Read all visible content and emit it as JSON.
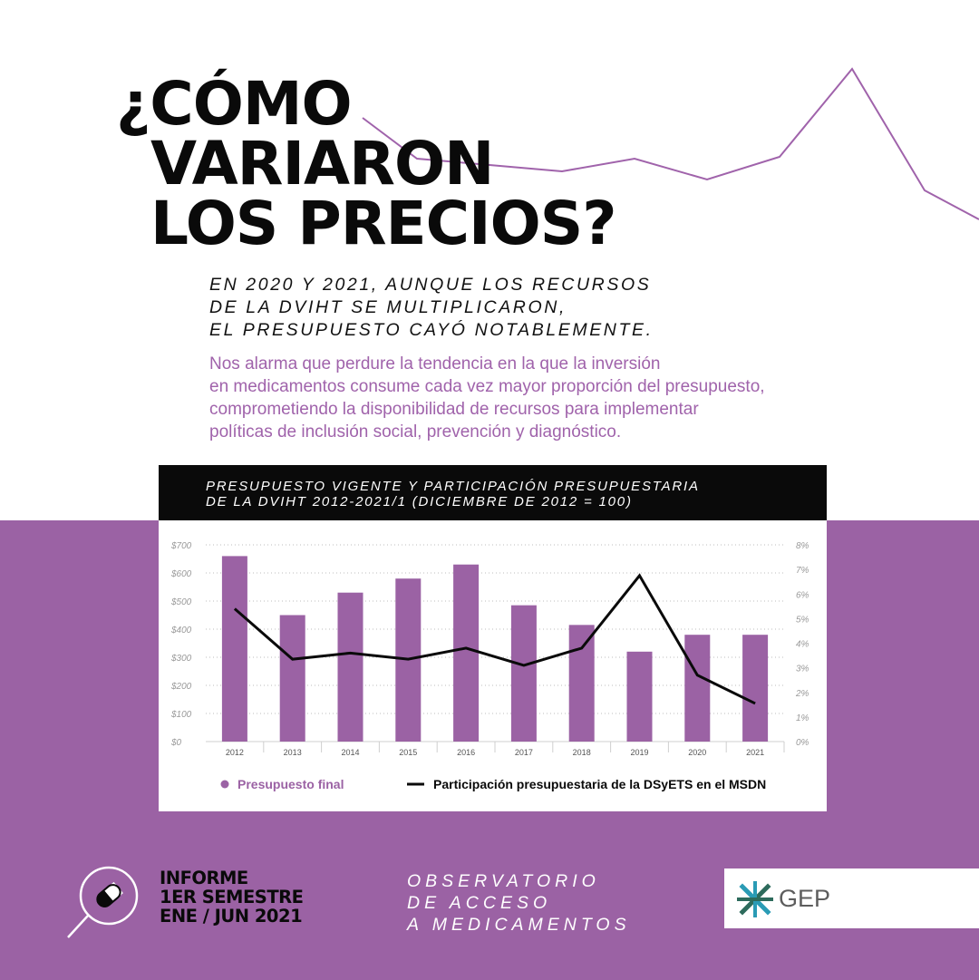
{
  "title": {
    "line1": "¿CÓMO",
    "line2": "VARIARON",
    "line3": "LOS PRECIOS?"
  },
  "subtitle": {
    "line1": "EN 2020 Y 2021, AUNQUE LOS RECURSOS",
    "line2": "DE LA DVIHT SE MULTIPLICARON,",
    "line3": "EL PRESUPUESTO CAYÓ NOTABLEMENTE."
  },
  "body": {
    "line1": "Nos alarma que perdure la tendencia en la que la inversión",
    "line2": "en medicamentos consume cada vez mayor proporción del presupuesto,",
    "line3": "comprometiendo la disponibilidad de recursos para implementar",
    "line4": "políticas de inclusión social, prevención y diagnóstico."
  },
  "chart_header": {
    "line1": "PRESUPUESTO VIGENTE Y PARTICIPACIÓN PRESUPUESTARIA",
    "line2": "DE LA DVIHT 2012-2021/1 (DICIEMBRE DE 2012 = 100)"
  },
  "footer": {
    "report_line1": "INFORME",
    "report_line2": "1ER SEMESTRE",
    "report_line3": "ENE / JUN 2021",
    "obs_line1": "OBSERVATORIO",
    "obs_line2": "DE ACCESO",
    "obs_line3": "A MEDICAMENTOS",
    "logo_text": "GEP"
  },
  "colors": {
    "purple": "#9b62a4",
    "text_purple": "#a063ab",
    "black": "#0a0a0a",
    "logo_teal": "#2a9bb5",
    "logo_green": "#2d6b5c"
  },
  "icons": {
    "footer": "magnifier-pill-icon",
    "logo": "gep-logo-icon"
  },
  "chart_data": {
    "type": "bar",
    "categories": [
      "2012",
      "2013",
      "2014",
      "2015",
      "2016",
      "2017",
      "2018",
      "2019",
      "2020",
      "2021"
    ],
    "series": [
      {
        "name": "Presupuesto final",
        "type": "bar",
        "axis": "left",
        "color": "#9b62a4",
        "values": [
          660,
          450,
          530,
          580,
          630,
          485,
          415,
          320,
          380,
          380
        ]
      },
      {
        "name": "Participación presupuestaria de la DSyETS en el MSDN",
        "type": "line",
        "axis": "right",
        "color": "#0a0a0a",
        "values": [
          5.4,
          3.35,
          3.6,
          3.35,
          3.8,
          3.1,
          3.8,
          6.75,
          2.7,
          1.55
        ]
      }
    ],
    "y_left": {
      "ylim": [
        0,
        700
      ],
      "ticks": [
        "$0",
        "$100",
        "$200",
        "$300",
        "$400",
        "$500",
        "$600",
        "$700"
      ]
    },
    "y_right": {
      "ylim": [
        0,
        8
      ],
      "ticks": [
        "0%",
        "1%",
        "2%",
        "3%",
        "4%",
        "5%",
        "6%",
        "7%",
        "8%"
      ]
    },
    "grid": true,
    "legend": "bottom"
  }
}
